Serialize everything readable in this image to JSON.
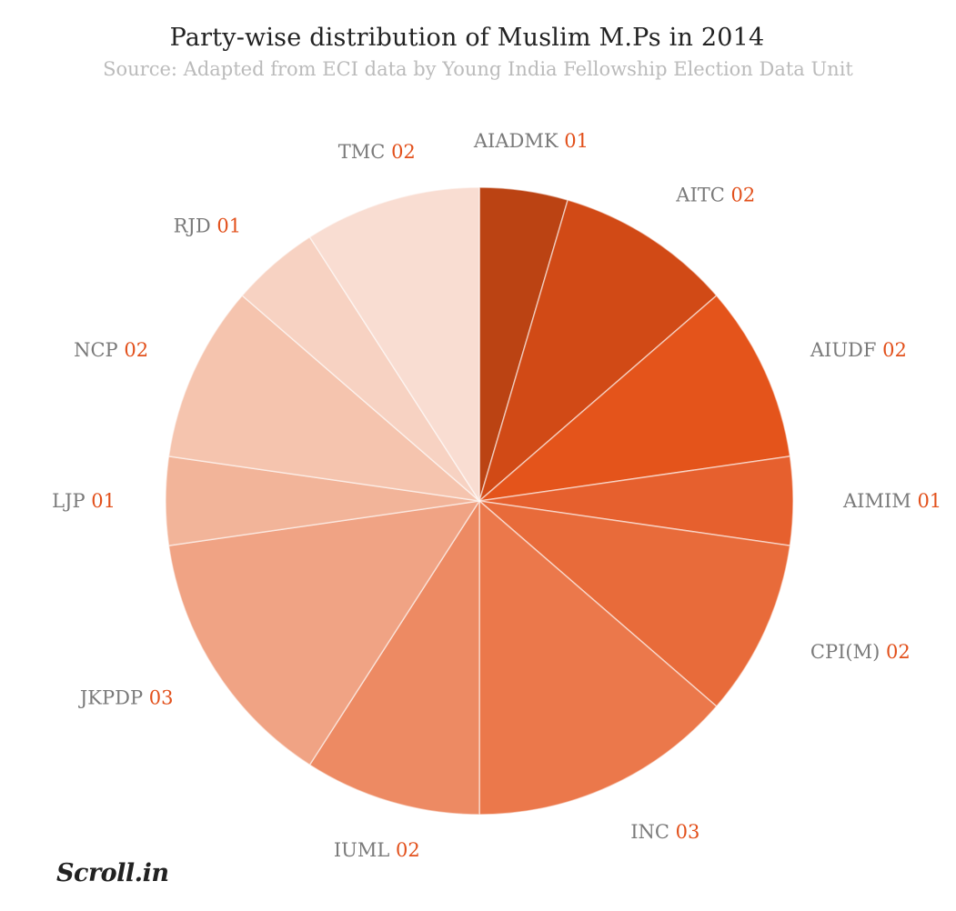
{
  "chart_data": {
    "type": "pie",
    "title": "Party-wise distribution of Muslim M.Ps in 2014",
    "subtitle": "Source: Adapted from ECI data by Young India Fellowship Election Data Unit",
    "slices": [
      {
        "label": "AIADMK",
        "value": 1,
        "value_text": "01",
        "color": "#bb4313"
      },
      {
        "label": "AITC",
        "value": 2,
        "value_text": "02",
        "color": "#d14a16"
      },
      {
        "label": "AIUDF",
        "value": 2,
        "value_text": "02",
        "color": "#e4541b"
      },
      {
        "label": "AIMIM",
        "value": 1,
        "value_text": "01",
        "color": "#e6602e"
      },
      {
        "label": "CPI(M)",
        "value": 2,
        "value_text": "02",
        "color": "#e86b3a"
      },
      {
        "label": "INC",
        "value": 3,
        "value_text": "03",
        "color": "#eb784b"
      },
      {
        "label": "IUML",
        "value": 2,
        "value_text": "02",
        "color": "#ed8a63"
      },
      {
        "label": "JKPDP",
        "value": 3,
        "value_text": "03",
        "color": "#f0a384"
      },
      {
        "label": "LJP",
        "value": 1,
        "value_text": "01",
        "color": "#f2b499"
      },
      {
        "label": "NCP",
        "value": 2,
        "value_text": "02",
        "color": "#f5c4ae"
      },
      {
        "label": "RJD",
        "value": 1,
        "value_text": "01",
        "color": "#f7d2c2"
      },
      {
        "label": "TMC",
        "value": 2,
        "value_text": "02",
        "color": "#f9ddd2"
      }
    ]
  },
  "brand": {
    "logo_text": "Scroll.in"
  }
}
